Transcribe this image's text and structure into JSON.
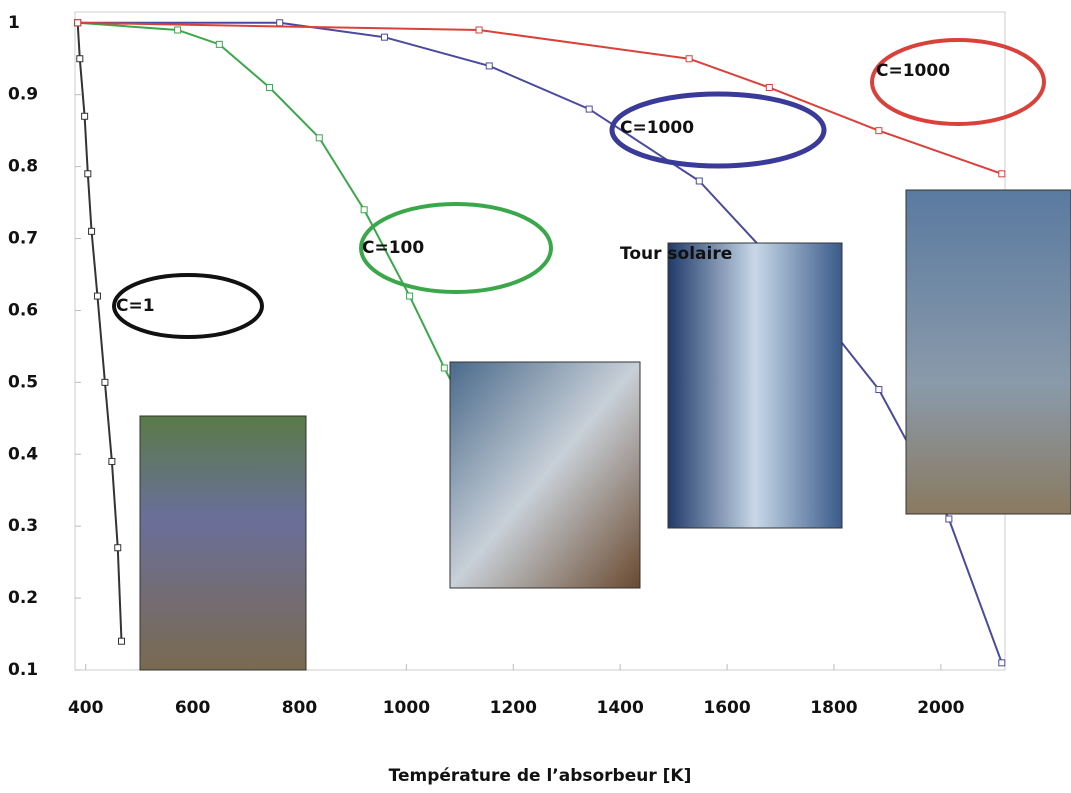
{
  "chart_data": {
    "type": "line",
    "x_label": "Température de l’absorbeur [K]",
    "annotations": [
      "Tour solaire"
    ],
    "xlim": [
      380,
      2120
    ],
    "xticks": [
      400,
      600,
      800,
      1000,
      1200,
      1400,
      1600,
      1800,
      2000
    ],
    "ylim": [
      0.1,
      1.015
    ],
    "yticks": [
      1,
      0.9,
      0.8,
      0.7,
      0.6,
      0.5,
      0.4,
      0.3,
      0.2,
      0.1
    ],
    "series": [
      {
        "name": "C=1",
        "color": "#333333",
        "x": [
          385,
          389,
          398,
          404,
          411,
          422,
          436,
          449,
          460,
          467
        ],
        "values": [
          1.0,
          0.95,
          0.87,
          0.79,
          0.71,
          0.62,
          0.5,
          0.39,
          0.27,
          0.14
        ]
      },
      {
        "name": "C=100",
        "color": "#3aa84a",
        "x": [
          385,
          572,
          650,
          744,
          837,
          921,
          1006,
          1071,
          1099
        ],
        "values": [
          1.0,
          0.99,
          0.97,
          0.91,
          0.84,
          0.74,
          0.62,
          0.52,
          0.48
        ]
      },
      {
        "name": "C=1000",
        "color": "#4a4a9e",
        "x": [
          385,
          763,
          959,
          1155,
          1342,
          1548,
          1735,
          1884,
          2015,
          2114
        ],
        "values": [
          1.0,
          1.0,
          0.98,
          0.94,
          0.88,
          0.78,
          0.63,
          0.49,
          0.31,
          0.11
        ]
      },
      {
        "name": "C=1000",
        "color": "#d9413a",
        "x": [
          385,
          1136,
          1529,
          1679,
          1884,
          2114
        ],
        "values": [
          1.0,
          0.99,
          0.95,
          0.91,
          0.85,
          0.79
        ]
      }
    ]
  }
}
